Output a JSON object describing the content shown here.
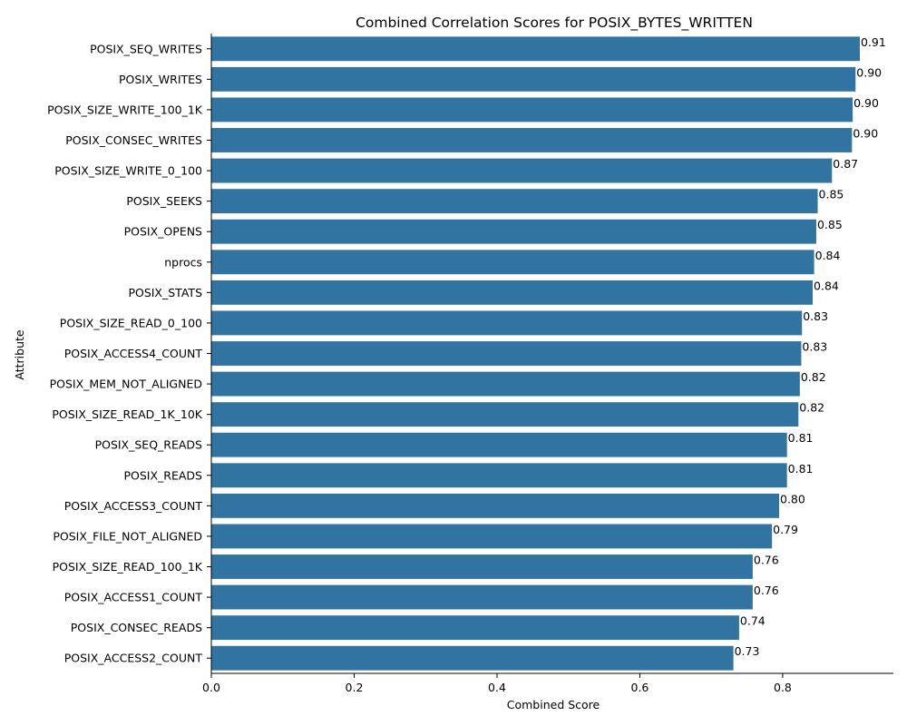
{
  "chart_data": {
    "type": "bar",
    "orientation": "horizontal",
    "title": "Combined Correlation Scores for POSIX_BYTES_WRITTEN",
    "xlabel": "Combined Score",
    "ylabel": "Attribute",
    "xlim": [
      0,
      0.955
    ],
    "xticks": [
      0.0,
      0.2,
      0.4,
      0.6,
      0.8
    ],
    "xtick_labels": [
      "0.0",
      "0.2",
      "0.4",
      "0.6",
      "0.8"
    ],
    "bar_color": "#3274a1",
    "grid": false,
    "categories": [
      "POSIX_SEQ_WRITES",
      "POSIX_WRITES",
      "POSIX_SIZE_WRITE_100_1K",
      "POSIX_CONSEC_WRITES",
      "POSIX_SIZE_WRITE_0_100",
      "POSIX_SEEKS",
      "POSIX_OPENS",
      "nprocs",
      "POSIX_STATS",
      "POSIX_SIZE_READ_0_100",
      "POSIX_ACCESS4_COUNT",
      "POSIX_MEM_NOT_ALIGNED",
      "POSIX_SIZE_READ_1K_10K",
      "POSIX_SEQ_READS",
      "POSIX_READS",
      "POSIX_ACCESS3_COUNT",
      "POSIX_FILE_NOT_ALIGNED",
      "POSIX_SIZE_READ_100_1K",
      "POSIX_ACCESS1_COUNT",
      "POSIX_CONSEC_READS",
      "POSIX_ACCESS2_COUNT"
    ],
    "values": [
      0.908,
      0.902,
      0.898,
      0.897,
      0.869,
      0.849,
      0.847,
      0.844,
      0.842,
      0.827,
      0.826,
      0.824,
      0.822,
      0.806,
      0.806,
      0.795,
      0.785,
      0.758,
      0.758,
      0.739,
      0.731
    ],
    "value_labels": [
      "0.91",
      "0.90",
      "0.90",
      "0.90",
      "0.87",
      "0.85",
      "0.85",
      "0.84",
      "0.84",
      "0.83",
      "0.83",
      "0.82",
      "0.82",
      "0.81",
      "0.81",
      "0.80",
      "0.79",
      "0.76",
      "0.76",
      "0.74",
      "0.73"
    ]
  }
}
